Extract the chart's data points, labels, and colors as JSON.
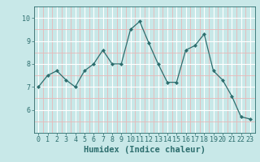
{
  "x": [
    0,
    1,
    2,
    3,
    4,
    5,
    6,
    7,
    8,
    9,
    10,
    11,
    12,
    13,
    14,
    15,
    16,
    17,
    18,
    19,
    20,
    21,
    22,
    23
  ],
  "y": [
    7.0,
    7.5,
    7.7,
    7.3,
    7.0,
    7.7,
    8.0,
    8.6,
    8.0,
    8.0,
    9.5,
    9.85,
    8.9,
    8.0,
    7.2,
    7.2,
    8.6,
    8.8,
    9.3,
    7.7,
    7.3,
    6.6,
    5.7,
    5.6
  ],
  "line_color": "#2d6e6e",
  "marker": "D",
  "marker_size": 2.0,
  "bg_color": "#c8e8e8",
  "grid_major_color": "#ffffff",
  "grid_minor_color": "#e8b8b8",
  "xlabel": "Humidex (Indice chaleur)",
  "ylim": [
    5.0,
    10.5
  ],
  "xlim": [
    -0.5,
    23.5
  ],
  "yticks": [
    6,
    7,
    8,
    9,
    10
  ],
  "xticks": [
    0,
    1,
    2,
    3,
    4,
    5,
    6,
    7,
    8,
    9,
    10,
    11,
    12,
    13,
    14,
    15,
    16,
    17,
    18,
    19,
    20,
    21,
    22,
    23
  ],
  "tick_fontsize": 6,
  "label_fontsize": 7.5,
  "linewidth": 0.9
}
